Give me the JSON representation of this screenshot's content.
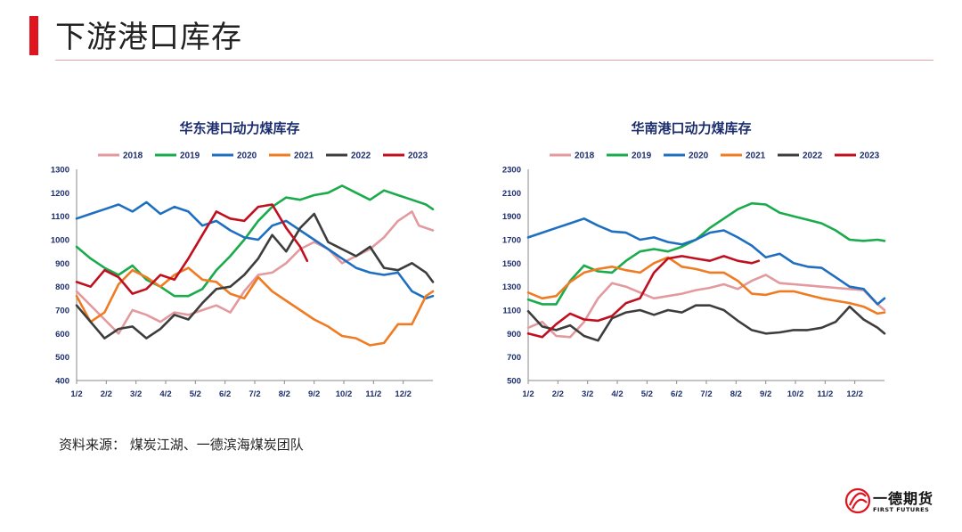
{
  "page": {
    "title": "下游港口库存",
    "source": "资料来源： 煤炭江湖、一德滨海煤炭团队"
  },
  "logo": {
    "cn": "一德期货",
    "en": "FIRST FUTURES"
  },
  "colors": {
    "accent": "#e0141e",
    "2018": "#e39a9e",
    "2019": "#1aab4c",
    "2020": "#1f6fc0",
    "2021": "#ef7b22",
    "2022": "#3d3d3d",
    "2023": "#c00f1e"
  },
  "chart_data": [
    {
      "type": "line",
      "title": "华东港口动力煤库存",
      "legend_position": "top",
      "x_ticks": [
        "1/2",
        "2/2",
        "3/2",
        "4/2",
        "5/2",
        "6/2",
        "7/2",
        "8/2",
        "9/2",
        "10/2",
        "11/2",
        "12/2"
      ],
      "y_ticks": [
        "1300",
        "1200",
        "1100",
        "1000",
        "900",
        "800",
        "700",
        "600",
        "500",
        "400"
      ],
      "ylim": [
        400,
        1300
      ],
      "x_range": [
        1,
        52
      ],
      "series": [
        {
          "name": "2018",
          "x": [
            1,
            3,
            5,
            7,
            9,
            11,
            13,
            15,
            17,
            19,
            21,
            23,
            25,
            27,
            29,
            31,
            33,
            35,
            37,
            39,
            41,
            43,
            45,
            47,
            49,
            50,
            52
          ],
          "values": [
            780,
            720,
            660,
            600,
            700,
            680,
            650,
            690,
            680,
            700,
            720,
            690,
            780,
            850,
            860,
            900,
            960,
            990,
            960,
            900,
            930,
            960,
            1010,
            1080,
            1120,
            1060,
            1040
          ]
        },
        {
          "name": "2019",
          "x": [
            1,
            3,
            5,
            7,
            9,
            11,
            13,
            15,
            17,
            19,
            21,
            23,
            25,
            27,
            29,
            31,
            33,
            35,
            37,
            39,
            41,
            43,
            45,
            47,
            49,
            51,
            52
          ],
          "values": [
            970,
            920,
            880,
            850,
            890,
            830,
            800,
            760,
            760,
            790,
            870,
            930,
            1000,
            1080,
            1140,
            1180,
            1170,
            1190,
            1200,
            1230,
            1200,
            1170,
            1210,
            1190,
            1170,
            1150,
            1130
          ]
        },
        {
          "name": "2020",
          "x": [
            1,
            3,
            5,
            7,
            9,
            11,
            13,
            15,
            17,
            19,
            21,
            23,
            25,
            27,
            29,
            31,
            33,
            35,
            37,
            39,
            41,
            43,
            45,
            47,
            49,
            51,
            52
          ],
          "values": [
            1090,
            1110,
            1130,
            1150,
            1120,
            1160,
            1110,
            1140,
            1120,
            1060,
            1080,
            1040,
            1010,
            1000,
            1060,
            1080,
            1040,
            1000,
            960,
            920,
            880,
            860,
            850,
            860,
            780,
            750,
            760
          ]
        },
        {
          "name": "2021",
          "x": [
            1,
            3,
            5,
            7,
            9,
            11,
            13,
            15,
            17,
            19,
            21,
            23,
            25,
            27,
            29,
            31,
            33,
            35,
            37,
            39,
            41,
            43,
            45,
            47,
            49,
            51,
            52
          ],
          "values": [
            760,
            650,
            690,
            810,
            870,
            840,
            800,
            850,
            880,
            830,
            820,
            770,
            750,
            840,
            780,
            740,
            700,
            660,
            630,
            590,
            580,
            550,
            560,
            640,
            640,
            760,
            780
          ]
        },
        {
          "name": "2022",
          "x": [
            1,
            3,
            5,
            7,
            9,
            11,
            13,
            15,
            17,
            19,
            21,
            23,
            25,
            27,
            29,
            31,
            33,
            35,
            37,
            39,
            41,
            43,
            45,
            47,
            49,
            51,
            52
          ],
          "values": [
            720,
            650,
            580,
            620,
            630,
            580,
            620,
            680,
            660,
            730,
            790,
            800,
            850,
            920,
            1020,
            950,
            1050,
            1110,
            990,
            960,
            930,
            970,
            880,
            870,
            900,
            860,
            820
          ]
        },
        {
          "name": "2023",
          "x": [
            1,
            3,
            5,
            7,
            9,
            11,
            13,
            15,
            17,
            19,
            21,
            23,
            25,
            27,
            29,
            31,
            33,
            34
          ],
          "values": [
            820,
            800,
            870,
            840,
            770,
            790,
            850,
            830,
            920,
            1020,
            1120,
            1090,
            1080,
            1140,
            1150,
            1050,
            970,
            910
          ]
        }
      ]
    },
    {
      "type": "line",
      "title": "华南港口动力煤库存",
      "legend_position": "top",
      "x_ticks": [
        "1/2",
        "2/2",
        "3/2",
        "4/2",
        "5/2",
        "6/2",
        "7/2",
        "8/2",
        "9/2",
        "10/2",
        "11/2",
        "12/2"
      ],
      "y_ticks": [
        "2300",
        "2100",
        "1900",
        "1700",
        "1500",
        "1300",
        "1100",
        "900",
        "700",
        "500"
      ],
      "ylim": [
        500,
        2300
      ],
      "x_range": [
        1,
        52
      ],
      "series": [
        {
          "name": "2018",
          "x": [
            1,
            3,
            5,
            7,
            9,
            11,
            13,
            15,
            17,
            19,
            21,
            23,
            25,
            27,
            29,
            31,
            33,
            35,
            37,
            39,
            41,
            43,
            45,
            47,
            49,
            51,
            52
          ],
          "values": [
            950,
            1000,
            880,
            870,
            1000,
            1200,
            1330,
            1300,
            1250,
            1200,
            1220,
            1240,
            1270,
            1290,
            1320,
            1280,
            1350,
            1400,
            1330,
            1320,
            1310,
            1300,
            1290,
            1280,
            1270,
            1150,
            1100
          ]
        },
        {
          "name": "2019",
          "x": [
            1,
            3,
            5,
            7,
            9,
            11,
            13,
            15,
            17,
            19,
            21,
            23,
            25,
            27,
            29,
            31,
            33,
            35,
            37,
            39,
            41,
            43,
            45,
            47,
            49,
            51,
            52
          ],
          "values": [
            1190,
            1150,
            1150,
            1350,
            1480,
            1430,
            1420,
            1520,
            1600,
            1620,
            1600,
            1640,
            1700,
            1800,
            1880,
            1960,
            2010,
            2000,
            1930,
            1900,
            1870,
            1840,
            1780,
            1700,
            1690,
            1700,
            1690
          ]
        },
        {
          "name": "2020",
          "x": [
            1,
            3,
            5,
            7,
            9,
            11,
            13,
            15,
            17,
            19,
            21,
            23,
            25,
            27,
            29,
            31,
            33,
            35,
            37,
            39,
            41,
            43,
            45,
            47,
            49,
            51,
            52
          ],
          "values": [
            1720,
            1760,
            1800,
            1840,
            1880,
            1820,
            1770,
            1760,
            1700,
            1720,
            1680,
            1660,
            1700,
            1760,
            1780,
            1720,
            1650,
            1550,
            1580,
            1500,
            1470,
            1460,
            1380,
            1300,
            1280,
            1150,
            1200
          ]
        },
        {
          "name": "2021",
          "x": [
            1,
            3,
            5,
            7,
            9,
            11,
            13,
            15,
            17,
            19,
            21,
            23,
            25,
            27,
            29,
            31,
            33,
            35,
            37,
            39,
            41,
            43,
            45,
            47,
            49,
            51,
            52
          ],
          "values": [
            1250,
            1200,
            1220,
            1340,
            1420,
            1450,
            1470,
            1440,
            1420,
            1500,
            1550,
            1470,
            1450,
            1420,
            1420,
            1350,
            1240,
            1230,
            1260,
            1260,
            1230,
            1200,
            1180,
            1160,
            1130,
            1070,
            1080
          ]
        },
        {
          "name": "2022",
          "x": [
            1,
            3,
            5,
            7,
            9,
            11,
            13,
            15,
            17,
            19,
            21,
            23,
            25,
            27,
            29,
            31,
            33,
            35,
            37,
            39,
            41,
            43,
            45,
            47,
            49,
            51,
            52
          ],
          "values": [
            1090,
            960,
            930,
            970,
            880,
            840,
            1030,
            1080,
            1100,
            1060,
            1100,
            1080,
            1140,
            1140,
            1100,
            1010,
            930,
            900,
            910,
            930,
            930,
            950,
            1000,
            1130,
            1020,
            950,
            900
          ]
        },
        {
          "name": "2023",
          "x": [
            1,
            3,
            5,
            7,
            9,
            11,
            13,
            15,
            17,
            19,
            21,
            23,
            25,
            27,
            29,
            31,
            33,
            34
          ],
          "values": [
            900,
            870,
            980,
            1070,
            1020,
            1010,
            1050,
            1160,
            1200,
            1420,
            1540,
            1560,
            1540,
            1520,
            1560,
            1520,
            1500,
            1520
          ]
        }
      ]
    }
  ]
}
